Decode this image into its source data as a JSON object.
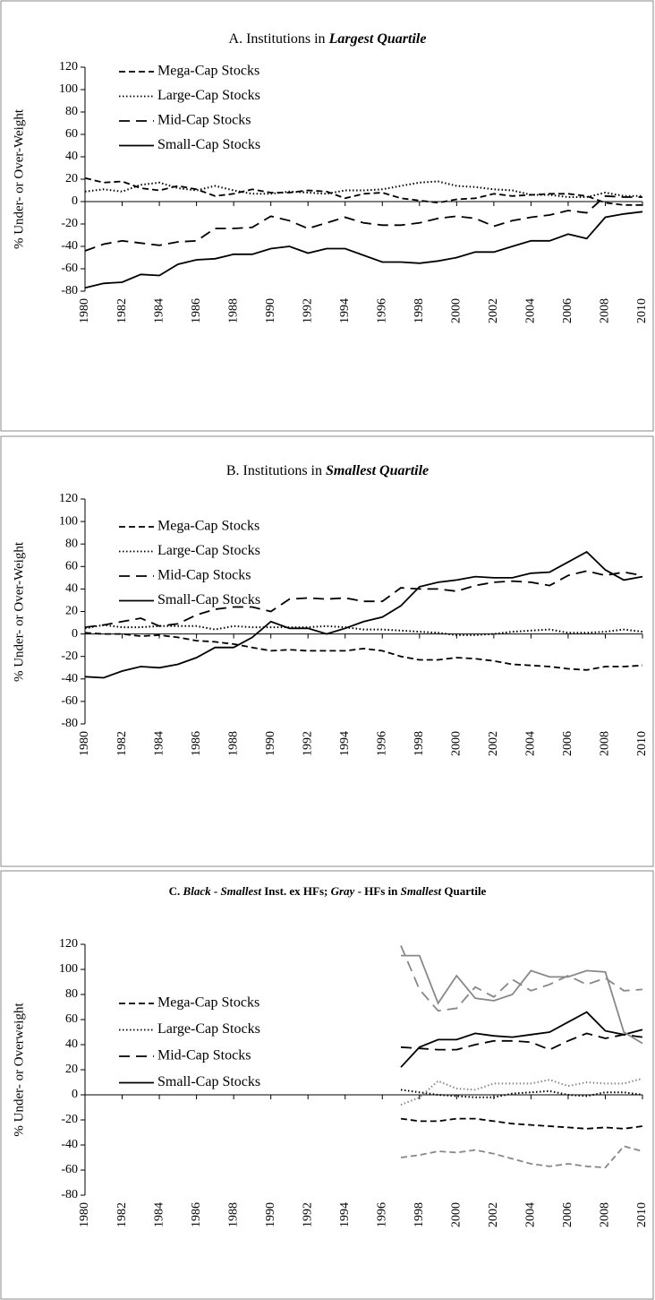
{
  "chart_data": [
    {
      "type": "line",
      "title": [
        "A. Institutions in ",
        "Largest Quartile"
      ],
      "ylabel": "% Under- or Over-Weight",
      "x": [
        1980,
        1981,
        1982,
        1983,
        1984,
        1985,
        1986,
        1987,
        1988,
        1989,
        1990,
        1991,
        1992,
        1993,
        1994,
        1995,
        1996,
        1997,
        1998,
        1999,
        2000,
        2001,
        2002,
        2003,
        2004,
        2005,
        2006,
        2007,
        2008,
        2009,
        2010
      ],
      "xlim": [
        1980,
        2010
      ],
      "xticks": [
        1980,
        1982,
        1984,
        1986,
        1988,
        1990,
        1992,
        1994,
        1996,
        1998,
        2000,
        2002,
        2004,
        2006,
        2008,
        2010
      ],
      "ylim": [
        -80,
        120
      ],
      "yticks": [
        -80,
        -60,
        -40,
        -20,
        0,
        20,
        40,
        60,
        80,
        100,
        120
      ],
      "legend": "upper left",
      "series": [
        {
          "name": "Mega-Cap Stocks",
          "color": "#000000",
          "linestyle": "dashed",
          "values": [
            21,
            17,
            18,
            12,
            10,
            14,
            11,
            5,
            7,
            11,
            8,
            8,
            10,
            9,
            3,
            7,
            8,
            3,
            1,
            -1,
            2,
            3,
            7,
            5,
            6,
            7,
            7,
            5,
            -1,
            -3,
            -3
          ]
        },
        {
          "name": "Large-Cap Stocks",
          "color": "#000000",
          "linestyle": "dotted",
          "values": [
            9,
            11,
            9,
            15,
            17,
            12,
            10,
            14,
            10,
            7,
            7,
            9,
            8,
            7,
            10,
            10,
            11,
            14,
            17,
            18,
            14,
            13,
            11,
            10,
            6,
            6,
            4,
            4,
            8,
            5,
            5
          ]
        },
        {
          "name": "Mid-Cap Stocks",
          "color": "#000000",
          "linestyle": "longdash",
          "values": [
            -44,
            -38,
            -35,
            -37,
            -39,
            -36,
            -35,
            -24,
            -24,
            -23,
            -13,
            -17,
            -24,
            -19,
            -14,
            -19,
            -21,
            -21,
            -19,
            -15,
            -13,
            -15,
            -22,
            -17,
            -14,
            -12,
            -8,
            -10,
            5,
            4,
            4
          ]
        },
        {
          "name": "Small-Cap Stocks",
          "color": "#000000",
          "linestyle": "solid",
          "values": [
            -77,
            -73,
            -72,
            -65,
            -66,
            -56,
            -52,
            -51,
            -47,
            -47,
            -42,
            -40,
            -46,
            -42,
            -42,
            -48,
            -54,
            -54,
            -55,
            -53,
            -50,
            -45,
            -45,
            -40,
            -35,
            -35,
            -29,
            -33,
            -14,
            -11,
            -9
          ]
        }
      ]
    },
    {
      "type": "line",
      "title": [
        "B. Institutions in ",
        "Smallest Quartile"
      ],
      "ylabel": "% Under- or Over-Weight",
      "x": [
        1980,
        1981,
        1982,
        1983,
        1984,
        1985,
        1986,
        1987,
        1988,
        1989,
        1990,
        1991,
        1992,
        1993,
        1994,
        1995,
        1996,
        1997,
        1998,
        1999,
        2000,
        2001,
        2002,
        2003,
        2004,
        2005,
        2006,
        2007,
        2008,
        2009,
        2010
      ],
      "xlim": [
        1980,
        2010
      ],
      "xticks": [
        1980,
        1982,
        1984,
        1986,
        1988,
        1990,
        1992,
        1994,
        1996,
        1998,
        2000,
        2002,
        2004,
        2006,
        2008,
        2010
      ],
      "ylim": [
        -80,
        120
      ],
      "yticks": [
        -80,
        -60,
        -40,
        -20,
        0,
        20,
        40,
        60,
        80,
        100,
        120
      ],
      "legend": "upper left",
      "series": [
        {
          "name": "Mega-Cap Stocks",
          "color": "#000000",
          "linestyle": "dashed",
          "values": [
            1,
            0,
            0,
            -2,
            -1,
            -3,
            -6,
            -7,
            -9,
            -12,
            -15,
            -14,
            -15,
            -15,
            -15,
            -13,
            -15,
            -20,
            -23,
            -23,
            -21,
            -22,
            -24,
            -27,
            -28,
            -29,
            -31,
            -32,
            -29,
            -29,
            -28
          ]
        },
        {
          "name": "Large-Cap Stocks",
          "color": "#000000",
          "linestyle": "dotted",
          "values": [
            5,
            8,
            6,
            6,
            7,
            7,
            7,
            4,
            7,
            6,
            6,
            6,
            6,
            7,
            6,
            4,
            4,
            3,
            2,
            1,
            -1,
            -1,
            0,
            2,
            3,
            4,
            1,
            1,
            2,
            4,
            2
          ]
        },
        {
          "name": "Mid-Cap Stocks",
          "color": "#000000",
          "linestyle": "longdash",
          "values": [
            6,
            8,
            11,
            14,
            7,
            9,
            17,
            22,
            24,
            24,
            20,
            31,
            32,
            31,
            32,
            29,
            29,
            41,
            40,
            40,
            38,
            43,
            46,
            47,
            46,
            43,
            52,
            56,
            52,
            55,
            52
          ]
        },
        {
          "name": "Small-Cap Stocks",
          "color": "#000000",
          "linestyle": "solid",
          "values": [
            -38,
            -39,
            -33,
            -29,
            -30,
            -27,
            -21,
            -12,
            -12,
            -3,
            11,
            5,
            5,
            0,
            5,
            11,
            15,
            25,
            42,
            46,
            48,
            51,
            50,
            50,
            54,
            55,
            64,
            73,
            57,
            48,
            51
          ]
        }
      ]
    },
    {
      "type": "line",
      "title": [
        "C. ",
        "Black",
        " - ",
        "Smallest",
        " Inst. ex HFs; ",
        "Gray",
        " - HFs in ",
        "Smallest",
        " Quartile"
      ],
      "ylabel": "% Under- or Overweight",
      "x": [
        1997,
        1998,
        1999,
        2000,
        2001,
        2002,
        2003,
        2004,
        2005,
        2006,
        2007,
        2008,
        2009,
        2010
      ],
      "xlim": [
        1980,
        2010
      ],
      "xticks": [
        1980,
        1982,
        1984,
        1986,
        1988,
        1990,
        1992,
        1994,
        1996,
        1998,
        2000,
        2002,
        2004,
        2006,
        2008,
        2010
      ],
      "ylim": [
        -80,
        120
      ],
      "yticks": [
        -80,
        -60,
        -40,
        -20,
        0,
        20,
        40,
        60,
        80,
        100,
        120
      ],
      "legend": "upper left",
      "series": [
        {
          "name": "Mega-Cap Stocks",
          "color": "#000000",
          "linestyle": "dashed",
          "values": [
            -19,
            -21,
            -21,
            -19,
            -19,
            -21,
            -23,
            -24,
            -25,
            -26,
            -27,
            -26,
            -27,
            -25
          ]
        },
        {
          "name": "Large-Cap Stocks",
          "color": "#000000",
          "linestyle": "dotted",
          "values": [
            4,
            2,
            0,
            -1,
            -2,
            -2,
            1,
            2,
            3,
            0,
            -1,
            2,
            2,
            0
          ]
        },
        {
          "name": "Mid-Cap Stocks",
          "color": "#000000",
          "linestyle": "longdash",
          "values": [
            38,
            37,
            36,
            36,
            40,
            43,
            43,
            42,
            36,
            43,
            49,
            45,
            48,
            46
          ]
        },
        {
          "name": "Small-Cap Stocks",
          "color": "#000000",
          "linestyle": "solid",
          "values": [
            22,
            38,
            44,
            44,
            49,
            47,
            46,
            48,
            50,
            58,
            66,
            51,
            48,
            52
          ]
        },
        {
          "color": "#888888",
          "linestyle": "dashed",
          "values": [
            -50,
            -48,
            -45,
            -46,
            -44,
            -47,
            -51,
            -55,
            -57,
            -55,
            -57,
            -58,
            -41,
            -45
          ]
        },
        {
          "color": "#888888",
          "linestyle": "dotted",
          "values": [
            -8,
            -2,
            11,
            5,
            4,
            9,
            9,
            9,
            12,
            7,
            10,
            9,
            9,
            13
          ]
        },
        {
          "color": "#888888",
          "linestyle": "longdash",
          "values": [
            119,
            84,
            67,
            69,
            86,
            78,
            92,
            83,
            88,
            95,
            88,
            93,
            83,
            84
          ]
        },
        {
          "color": "#888888",
          "linestyle": "solid",
          "values": [
            111,
            111,
            73,
            95,
            77,
            75,
            80,
            99,
            94,
            94,
            99,
            98,
            50,
            41
          ]
        }
      ]
    }
  ]
}
